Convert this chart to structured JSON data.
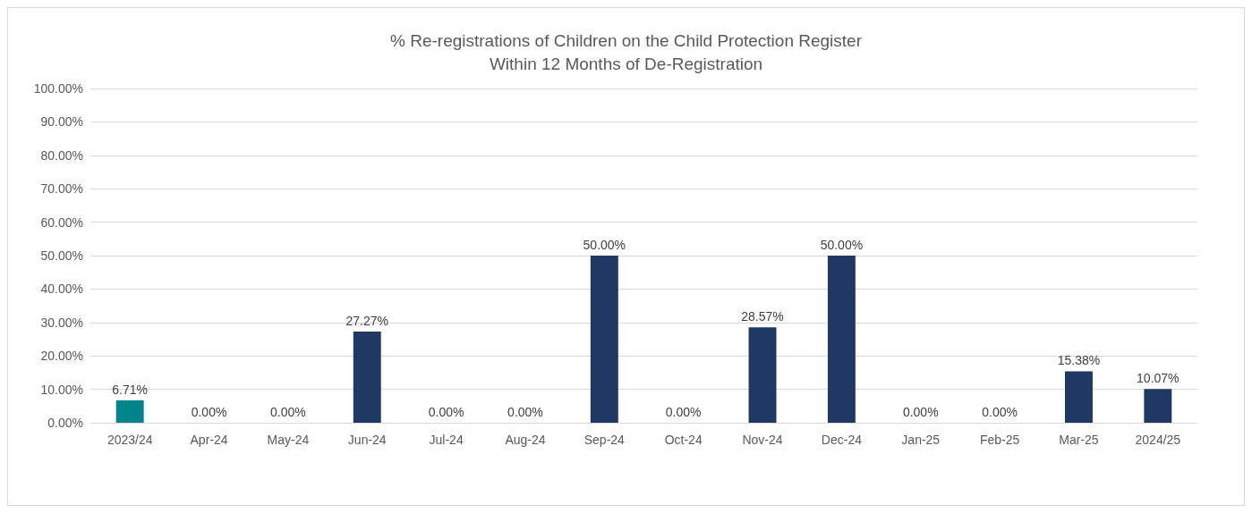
{
  "chart_data": {
    "type": "bar",
    "title": "% Re-registrations of Children on the Child Protection Register\nWithin 12 Months of De-Registration",
    "categories": [
      "2023/24",
      "Apr-24",
      "May-24",
      "Jun-24",
      "Jul-24",
      "Aug-24",
      "Sep-24",
      "Oct-24",
      "Nov-24",
      "Dec-24",
      "Jan-25",
      "Feb-25",
      "Mar-25",
      "2024/25"
    ],
    "values": [
      6.71,
      0,
      0,
      27.27,
      0,
      0,
      50,
      0,
      28.57,
      50,
      0,
      0,
      15.38,
      10.07
    ],
    "colors": [
      "#00868a",
      "#1f3864",
      "#1f3864",
      "#1f3864",
      "#1f3864",
      "#1f3864",
      "#1f3864",
      "#1f3864",
      "#1f3864",
      "#1f3864",
      "#1f3864",
      "#1f3864",
      "#1f3864",
      "#1f3864"
    ],
    "value_labels": [
      "6.71%",
      "0.00%",
      "0.00%",
      "27.27%",
      "0.00%",
      "0.00%",
      "50.00%",
      "0.00%",
      "28.57%",
      "50.00%",
      "0.00%",
      "0.00%",
      "15.38%",
      "10.07%"
    ],
    "ylim": [
      0,
      100
    ],
    "yticks": [
      {
        "value": 0,
        "label": "0.00%"
      },
      {
        "value": 10,
        "label": "10.00%"
      },
      {
        "value": 20,
        "label": "20.00%"
      },
      {
        "value": 30,
        "label": "30.00%"
      },
      {
        "value": 40,
        "label": "40.00%"
      },
      {
        "value": 50,
        "label": "50.00%"
      },
      {
        "value": 60,
        "label": "60.00%"
      },
      {
        "value": 70,
        "label": "70.00%"
      },
      {
        "value": 80,
        "label": "80.00%"
      },
      {
        "value": 90,
        "label": "90.00%"
      },
      {
        "value": 100,
        "label": "100.00%"
      }
    ],
    "grid": "y"
  }
}
